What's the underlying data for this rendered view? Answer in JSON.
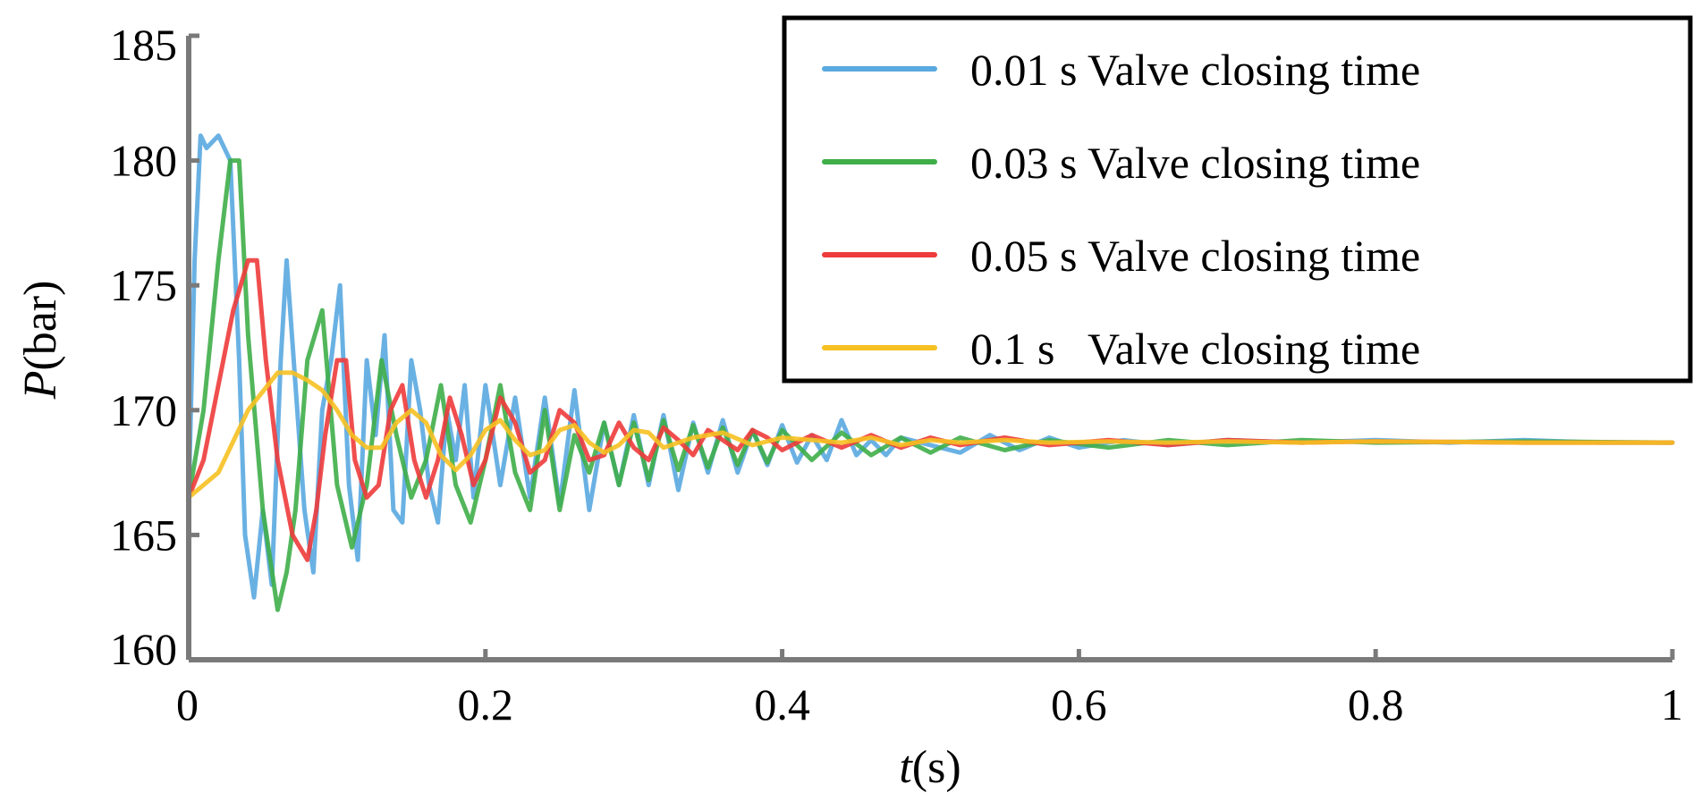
{
  "chart_data": {
    "type": "line",
    "title": "",
    "xlabel": {
      "var": "t",
      "unit": "(s)"
    },
    "ylabel": {
      "var": "P",
      "unit": "(bar)"
    },
    "xlim": [
      0,
      1
    ],
    "ylim": [
      160,
      185
    ],
    "x_ticks": [
      0,
      0.2,
      0.4,
      0.6,
      0.8,
      1
    ],
    "x_tick_labels": [
      "0",
      "0.2",
      "0.4",
      "0.6",
      "0.8",
      "1"
    ],
    "y_ticks": [
      160,
      165,
      170,
      175,
      180,
      185
    ],
    "y_tick_labels": [
      "160",
      "165",
      "170",
      "175",
      "180",
      "185"
    ],
    "grid": false,
    "legend_position": "top-right",
    "series": [
      {
        "name": "0.01 s Valve closing time",
        "color": "#5aa9e0",
        "x": [
          0,
          0.004,
          0.008,
          0.012,
          0.02,
          0.028,
          0.034,
          0.038,
          0.044,
          0.05,
          0.056,
          0.062,
          0.066,
          0.072,
          0.078,
          0.084,
          0.09,
          0.096,
          0.102,
          0.108,
          0.114,
          0.12,
          0.126,
          0.132,
          0.138,
          0.144,
          0.15,
          0.156,
          0.162,
          0.168,
          0.174,
          0.18,
          0.186,
          0.192,
          0.2,
          0.21,
          0.22,
          0.23,
          0.24,
          0.25,
          0.26,
          0.27,
          0.28,
          0.29,
          0.3,
          0.31,
          0.32,
          0.33,
          0.34,
          0.35,
          0.36,
          0.37,
          0.38,
          0.39,
          0.4,
          0.41,
          0.42,
          0.43,
          0.44,
          0.45,
          0.46,
          0.47,
          0.48,
          0.5,
          0.52,
          0.54,
          0.56,
          0.58,
          0.6,
          0.63,
          0.66,
          0.7,
          0.75,
          0.8,
          0.85,
          0.9,
          0.95,
          1.0
        ],
        "y": [
          166.5,
          176,
          181,
          180.5,
          181,
          180,
          172,
          165,
          162.5,
          166,
          163,
          172,
          176,
          171,
          166,
          163.5,
          170,
          172,
          175,
          167,
          164,
          172,
          169,
          173,
          166,
          165.5,
          172,
          170,
          167,
          165.5,
          170,
          168,
          171,
          166.5,
          171,
          167,
          170.5,
          166.5,
          170.5,
          166.2,
          170.8,
          166,
          169.5,
          167,
          169.8,
          167,
          169.8,
          166.8,
          169.5,
          167.5,
          169.6,
          167.5,
          169.2,
          167.8,
          169.4,
          167.9,
          169,
          168,
          169.6,
          168.2,
          168.8,
          168.2,
          168.9,
          168.6,
          168.3,
          169,
          168.4,
          168.9,
          168.5,
          168.8,
          168.6,
          168.8,
          168.7,
          168.8,
          168.7,
          168.8,
          168.7,
          168.7
        ]
      },
      {
        "name": "0.03 s Valve closing time",
        "color": "#3fae49",
        "x": [
          0,
          0.01,
          0.02,
          0.028,
          0.034,
          0.04,
          0.05,
          0.06,
          0.066,
          0.072,
          0.08,
          0.09,
          0.1,
          0.11,
          0.12,
          0.13,
          0.14,
          0.15,
          0.16,
          0.17,
          0.18,
          0.19,
          0.2,
          0.21,
          0.22,
          0.23,
          0.24,
          0.25,
          0.26,
          0.27,
          0.28,
          0.29,
          0.3,
          0.31,
          0.32,
          0.33,
          0.34,
          0.35,
          0.36,
          0.37,
          0.38,
          0.39,
          0.4,
          0.42,
          0.44,
          0.46,
          0.48,
          0.5,
          0.52,
          0.55,
          0.58,
          0.62,
          0.66,
          0.7,
          0.75,
          0.8,
          0.9,
          1.0
        ],
        "y": [
          166.5,
          170,
          176,
          180,
          180,
          173,
          166,
          162,
          163.5,
          166,
          172,
          174,
          167,
          164.5,
          167,
          172,
          169,
          166.5,
          168,
          171,
          167,
          165.5,
          168,
          171,
          167.5,
          166,
          170,
          166,
          169,
          167.5,
          169.5,
          167,
          169.5,
          167.2,
          169.6,
          167.6,
          169.4,
          167.7,
          169.3,
          167.8,
          169.2,
          167.9,
          169.2,
          168,
          169.1,
          168.2,
          168.9,
          168.3,
          168.9,
          168.4,
          168.8,
          168.5,
          168.8,
          168.6,
          168.8,
          168.7,
          168.75,
          168.7
        ]
      },
      {
        "name": "0.05 s Valve closing time",
        "color": "#ee3b3b",
        "x": [
          0,
          0.01,
          0.02,
          0.03,
          0.04,
          0.046,
          0.052,
          0.06,
          0.07,
          0.08,
          0.086,
          0.092,
          0.1,
          0.106,
          0.112,
          0.12,
          0.128,
          0.136,
          0.144,
          0.152,
          0.16,
          0.168,
          0.176,
          0.184,
          0.192,
          0.2,
          0.21,
          0.22,
          0.23,
          0.24,
          0.25,
          0.26,
          0.27,
          0.28,
          0.29,
          0.3,
          0.31,
          0.32,
          0.33,
          0.34,
          0.35,
          0.36,
          0.37,
          0.38,
          0.39,
          0.4,
          0.42,
          0.44,
          0.46,
          0.48,
          0.5,
          0.52,
          0.55,
          0.58,
          0.62,
          0.66,
          0.7,
          0.75,
          0.8,
          0.9,
          1.0
        ],
        "y": [
          166.5,
          168,
          171,
          174,
          176,
          176,
          172,
          168,
          165,
          164,
          166,
          169,
          172,
          172,
          168,
          166.5,
          167,
          170,
          171,
          168,
          166.5,
          168,
          170.5,
          169,
          167,
          168,
          170.5,
          169.5,
          167.5,
          168,
          170,
          169.5,
          168,
          168.2,
          169.5,
          168.5,
          168,
          169.3,
          168.8,
          168.2,
          169.2,
          168.8,
          168.4,
          169.2,
          168.9,
          168.4,
          169,
          168.5,
          169,
          168.5,
          168.9,
          168.6,
          168.9,
          168.6,
          168.8,
          168.6,
          168.8,
          168.7,
          168.75,
          168.7,
          168.7
        ]
      },
      {
        "name": "0.1 s   Valve closing time",
        "color": "#f6c122",
        "x": [
          0,
          0.02,
          0.04,
          0.06,
          0.07,
          0.08,
          0.09,
          0.1,
          0.11,
          0.12,
          0.13,
          0.14,
          0.15,
          0.16,
          0.17,
          0.18,
          0.19,
          0.2,
          0.21,
          0.22,
          0.23,
          0.24,
          0.25,
          0.26,
          0.27,
          0.28,
          0.29,
          0.3,
          0.31,
          0.32,
          0.34,
          0.36,
          0.38,
          0.4,
          0.42,
          0.44,
          0.46,
          0.48,
          0.5,
          0.52,
          0.55,
          0.58,
          0.62,
          0.66,
          0.7,
          0.75,
          0.8,
          0.9,
          1.0
        ],
        "y": [
          166.5,
          167.5,
          170,
          171.5,
          171.5,
          171.2,
          170.8,
          170,
          169,
          168.5,
          168.5,
          169.5,
          170,
          169.5,
          168.2,
          167.6,
          168.2,
          169.2,
          169.6,
          168.8,
          168.2,
          168.4,
          169.2,
          169.4,
          168.7,
          168.3,
          168.6,
          169.2,
          169.1,
          168.5,
          168.9,
          169.1,
          168.6,
          168.9,
          168.8,
          168.7,
          168.9,
          168.6,
          168.8,
          168.7,
          168.8,
          168.7,
          168.75,
          168.7,
          168.75,
          168.7,
          168.75,
          168.7,
          168.7
        ]
      }
    ]
  }
}
